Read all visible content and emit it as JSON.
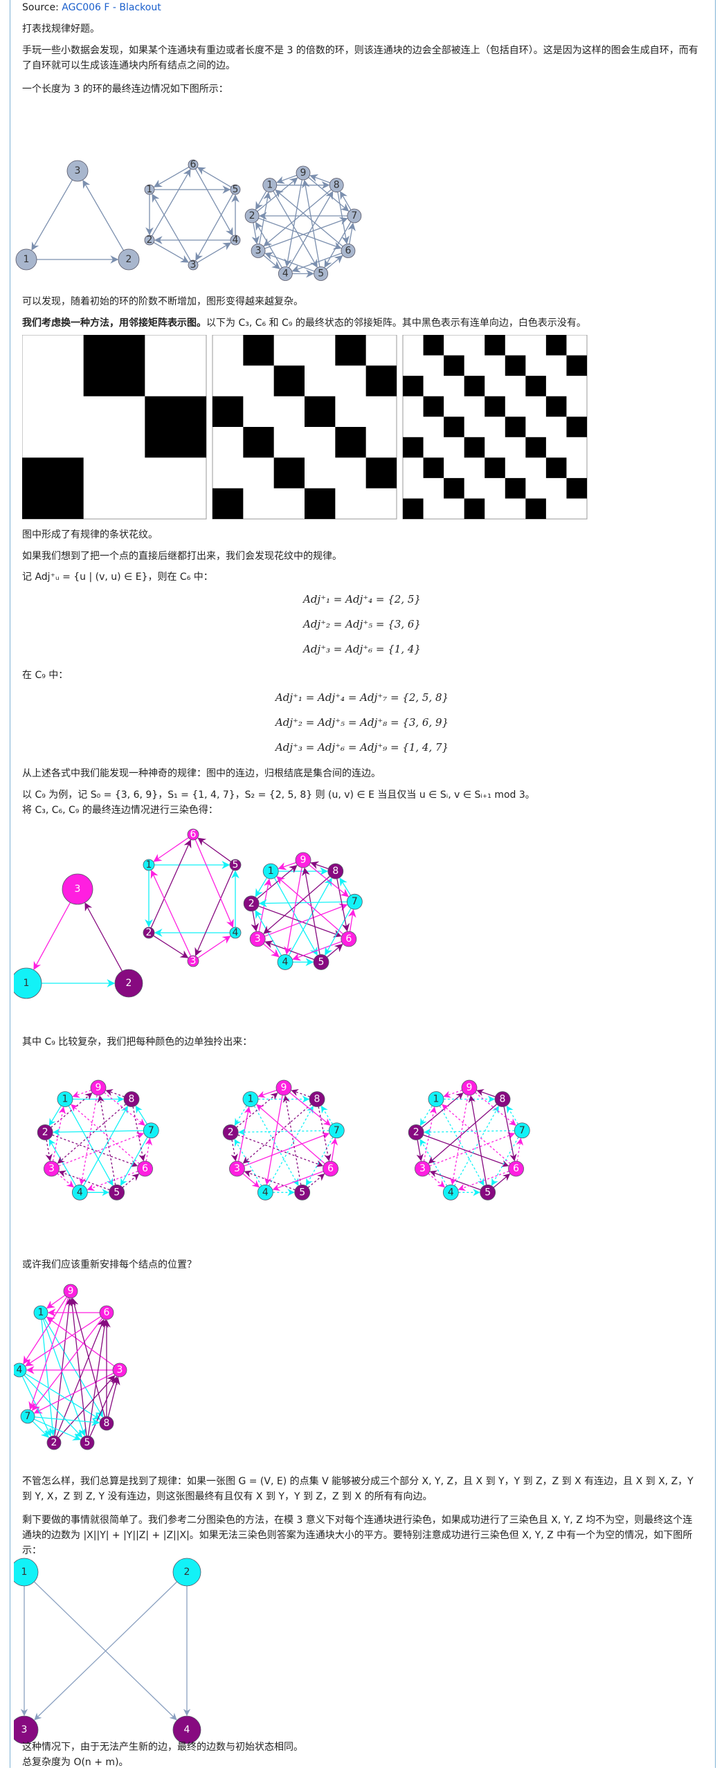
{
  "header": {
    "source_label": "Source:",
    "source_link": "AGC006 F - Blackout"
  },
  "text": {
    "p1": "打表找规律好题。",
    "p2": "手玩一些小数据会发现，如果某个连通块有重边或者长度不是 3 的倍数的环，则该连通块的边会全部被连上（包括自环）。这是因为这样的图会生成自环，而有了自环就可以生成该连通块内所有结点之间的边。",
    "p3": "一个长度为 3 的环的最终连边情况如下图所示：",
    "p4": "可以发现，随着初始的环的阶数不断增加，图形变得越来越复杂。",
    "p5_bold": "我们考虑换一种方法，用邻接矩阵表示图。",
    "p5_rest": "以下为 C₃, C₆ 和 C₉ 的最终状态的邻接矩阵。其中黑色表示有连单向边，白色表示没有。",
    "p6": "图中形成了有规律的条状花纹。",
    "p7": "如果我们想到了把一个点的直接后继都打出来，我们会发现花纹中的规律。",
    "p8": "记 Adj⁺ᵤ = {u | (v, u) ∈ E}，则在 C₆ 中：",
    "eq6": [
      "Adj⁺₁ = Adj⁺₄ = {2, 5}",
      "Adj⁺₂ = Adj⁺₅ = {3, 6}",
      "Adj⁺₃ = Adj⁺₆ = {1, 4}"
    ],
    "p9": "在 C₉ 中：",
    "eq9": [
      "Adj⁺₁ = Adj⁺₄ = Adj⁺₇ = {2, 5, 8}",
      "Adj⁺₂ = Adj⁺₅ = Adj⁺₈ = {3, 6, 9}",
      "Adj⁺₃ = Adj⁺₆ = Adj⁺₉ = {1, 4, 7}"
    ],
    "p10": "从上述各式中我们能发现一种神奇的规律：图中的连边，归根结底是集合间的连边。",
    "p11": "以 C₉ 为例，记 S₀ = {3, 6, 9}，S₁ = {1, 4, 7}，S₂ = {2, 5, 8} 则 (u, v) ∈ E 当且仅当 u ∈ Sᵢ, v ∈ Sᵢ₊₁ mod 3。",
    "p12": "将 C₃, C₆, C₉ 的最终连边情况进行三染色得：",
    "p13": "其中 C₉ 比较复杂，我们把每种颜色的边单独拎出来：",
    "p14": "或许我们应该重新安排每个结点的位置？",
    "p15": "不管怎么样，我们总算是找到了规律：如果一张图 G = (V, E) 的点集 V 能够被分成三个部分 X, Y, Z，且 X 到 Y，Y 到 Z，Z 到 X 有连边，且 X 到 X, Z，Y 到 Y, X，Z 到 Z, Y 没有连边，则这张图最终有且仅有 X 到 Y，Y 到 Z，Z 到 X 的所有有向边。",
    "p16": "剩下要做的事情就很简单了。我们参考二分图染色的方法，在模 3 意义下对每个连通块进行染色，如果成功进行了三染色且 X, Y, Z 均不为空，则最终这个连通块的边数为 |X||Y| + |Y||Z| + |Z||X|。如果无法三染色则答案为连通块大小的平方。要特别注意成功进行三染色但 X, Y, Z 中有一个为空的情况，如下图所示：",
    "p17": "这种情况下，由于无法产生新的边，最终的边数与初始状态相同。",
    "p18": "总复杂度为 O(n + m)。"
  },
  "colors": {
    "gray_node": "#a8b6cd",
    "gray_edge": "#7b8fae",
    "cyan": "#12f2f7",
    "magenta": "#ff1fe0",
    "purple": "#870a80",
    "link": "#1a5fcc"
  },
  "node_labels": {
    "c3": [
      "1",
      "2",
      "3"
    ],
    "c6": [
      "1",
      "2",
      "3",
      "4",
      "5",
      "6"
    ],
    "c9": [
      "1",
      "2",
      "3",
      "4",
      "5",
      "6",
      "7",
      "8",
      "9"
    ],
    "bip": [
      "1",
      "2",
      "3",
      "4"
    ]
  },
  "matrices": {
    "c3": [
      [
        0,
        1,
        0
      ],
      [
        0,
        0,
        1
      ],
      [
        1,
        0,
        0
      ]
    ],
    "c6": [
      [
        0,
        1,
        0,
        0,
        1,
        0
      ],
      [
        0,
        0,
        1,
        0,
        0,
        1
      ],
      [
        1,
        0,
        0,
        1,
        0,
        0
      ],
      [
        0,
        1,
        0,
        0,
        1,
        0
      ],
      [
        0,
        0,
        1,
        0,
        0,
        1
      ],
      [
        1,
        0,
        0,
        1,
        0,
        0
      ]
    ],
    "c9": [
      [
        0,
        1,
        0,
        0,
        1,
        0,
        0,
        1,
        0
      ],
      [
        0,
        0,
        1,
        0,
        0,
        1,
        0,
        0,
        1
      ],
      [
        1,
        0,
        0,
        1,
        0,
        0,
        1,
        0,
        0
      ],
      [
        0,
        1,
        0,
        0,
        1,
        0,
        0,
        1,
        0
      ],
      [
        0,
        0,
        1,
        0,
        0,
        1,
        0,
        0,
        1
      ],
      [
        1,
        0,
        0,
        1,
        0,
        0,
        1,
        0,
        0
      ],
      [
        0,
        1,
        0,
        0,
        1,
        0,
        0,
        1,
        0
      ],
      [
        0,
        0,
        1,
        0,
        0,
        1,
        0,
        0,
        1
      ],
      [
        1,
        0,
        0,
        1,
        0,
        0,
        1,
        0,
        0
      ]
    ]
  }
}
